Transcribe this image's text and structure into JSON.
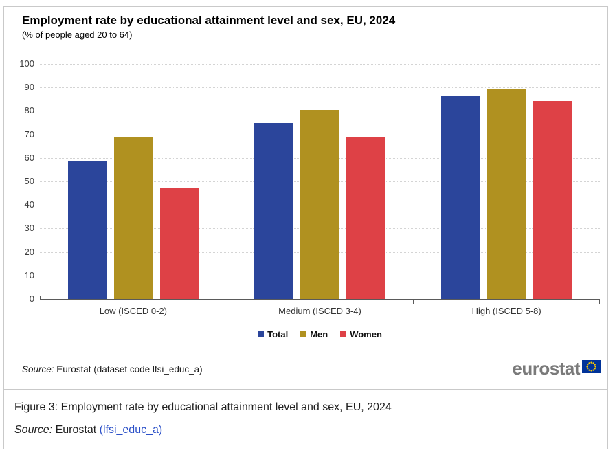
{
  "chart": {
    "title": "Employment rate by educational attainment level and sex, EU, 2024",
    "subtitle": "(% of people aged 20 to 64)",
    "source_label": "Source:",
    "source_rest": " Eurostat (dataset code lfsi_educ_a)",
    "logo_text": "eurostat"
  },
  "chart_data": {
    "type": "bar",
    "categories": [
      "Low (ISCED 0-2)",
      "Medium (ISCED 3-4)",
      "High (ISCED 5-8)"
    ],
    "series": [
      {
        "name": "Total",
        "color": "#2b459b",
        "values": [
          58.6,
          75.0,
          86.5
        ]
      },
      {
        "name": "Men",
        "color": "#b09120",
        "values": [
          68.9,
          80.3,
          89.1
        ]
      },
      {
        "name": "Women",
        "color": "#de4146",
        "values": [
          47.3,
          69.0,
          84.1
        ]
      }
    ],
    "title": "Employment rate by educational attainment level and sex, EU, 2024",
    "subtitle": "(% of people aged 20 to 64)",
    "xlabel": "",
    "ylabel": "",
    "ylim": [
      0,
      100
    ],
    "yticks": [
      0,
      10,
      20,
      30,
      40,
      50,
      60,
      70,
      80,
      90,
      100
    ],
    "grid": "horizontal-dotted",
    "legend_position": "bottom"
  },
  "caption": {
    "figure_text": "Figure 3: Employment rate by educational attainment level and sex, EU, 2024",
    "source_label": "Source:",
    "source_prefix": " Eurostat ",
    "link_text": "(lfsi_educ_a)",
    "link_color": "#2b50c8"
  },
  "colors": {
    "card_border": "#c9c9c9",
    "axis": "#5a5a5a",
    "gridline": "#d4d4d4",
    "logo_gray": "#7a7a7a",
    "eu_flag_blue": "#003399",
    "eu_star_yellow": "#ffcc00"
  }
}
